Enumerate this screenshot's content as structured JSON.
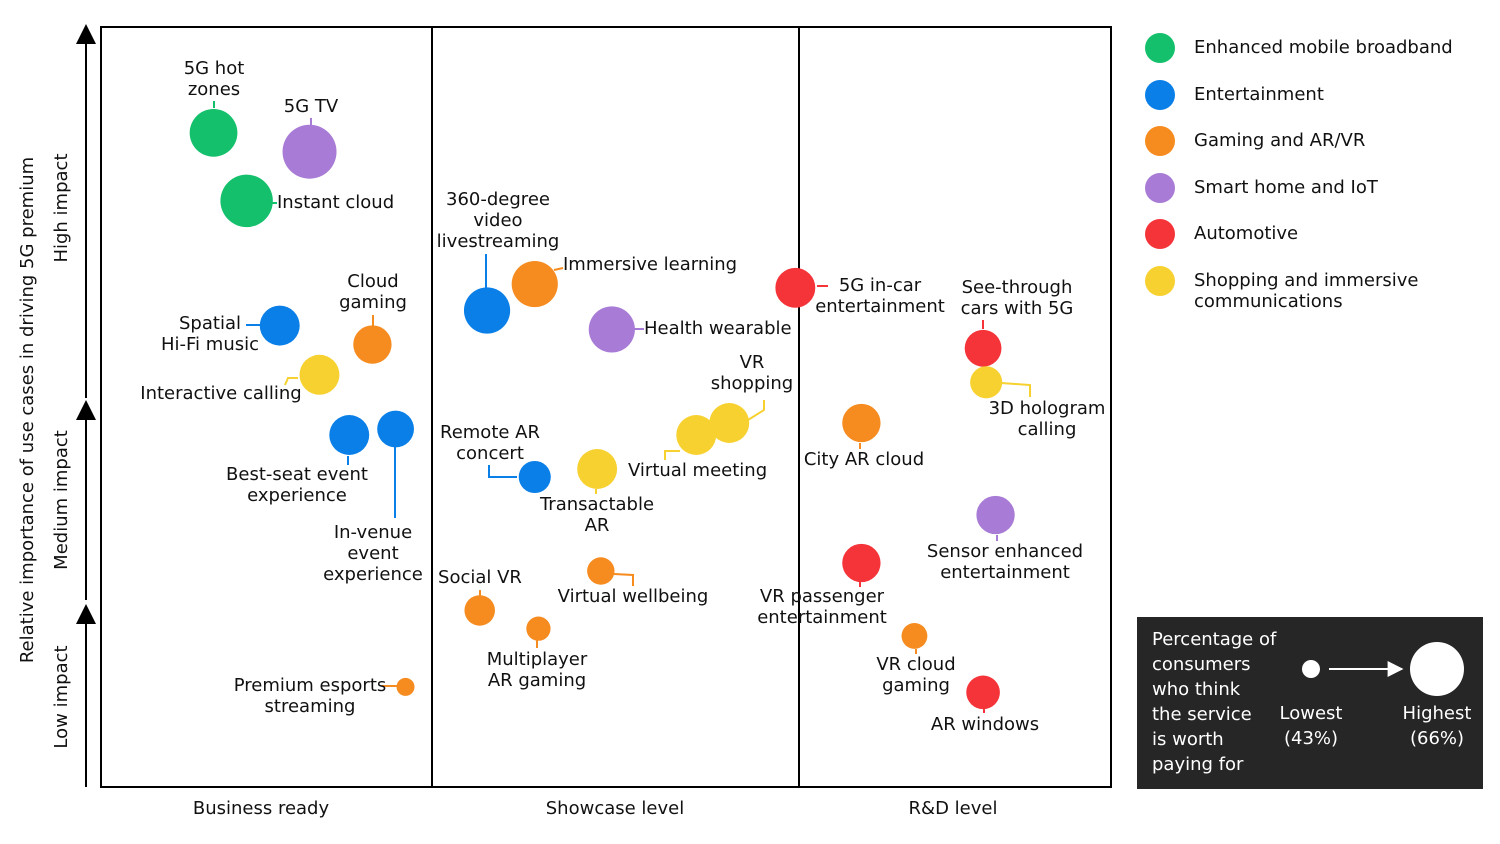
{
  "chart_data": {
    "type": "bubble",
    "ylabel": "Relative importance of use cases in driving 5G premium",
    "x_categories": [
      "Business ready",
      "Showcase level",
      "R&D level"
    ],
    "y_categories": [
      "Low impact",
      "Medium impact",
      "High impact"
    ],
    "xlim": [
      0,
      3
    ],
    "ylim": [
      0,
      3
    ],
    "series": [
      {
        "name": "Enhanced mobile broadband",
        "color": "#14c06b",
        "labels": [
          [
            "5G hot",
            "zones"
          ],
          [
            "Instant cloud"
          ]
        ],
        "x": [
          0.34,
          0.44
        ],
        "values": [
          2.72,
          2.54
        ],
        "sizes": [
          62,
          65
        ]
      },
      {
        "name": "Entertainment",
        "color": "#0a7fe8",
        "labels": [
          [
            "Spatial",
            "Hi-Fi music"
          ],
          [
            "Best-seat event",
            "experience"
          ],
          [
            "In-venue",
            "event",
            "experience"
          ],
          [
            "360-degree",
            "video",
            "livestreaming"
          ],
          [
            "Remote AR",
            "concert"
          ]
        ],
        "x": [
          0.54,
          0.75,
          0.89,
          1.15,
          1.28
        ],
        "values": [
          2.21,
          1.85,
          1.88,
          2.25,
          1.64
        ],
        "sizes": [
          57,
          57,
          55,
          61,
          52
        ]
      },
      {
        "name": "Gaming and AR/VR",
        "color": "#f68b1f",
        "labels": [
          [
            "Cloud",
            "gaming"
          ],
          [
            "Premium esports",
            "streaming"
          ],
          [
            "Immersive learning"
          ],
          [
            "Virtual wellbeing"
          ],
          [
            "Social VR"
          ],
          [
            "Multiplayer",
            "AR gaming"
          ],
          [
            "City AR cloud"
          ],
          [
            "VR cloud",
            "gaming"
          ]
        ],
        "x": [
          0.82,
          0.92,
          1.28,
          1.46,
          1.13,
          1.29,
          2.2,
          2.37
        ],
        "values": [
          2.16,
          0.55,
          2.32,
          1.17,
          0.97,
          0.87,
          1.91,
          0.83
        ],
        "sizes": [
          56,
          43,
          61,
          49,
          51,
          47,
          56,
          48
        ]
      },
      {
        "name": "Smart home and IoT",
        "color": "#a87bd6",
        "labels": [
          [
            "5G TV"
          ],
          [
            "Health wearable"
          ],
          [
            "Sensor enhanced",
            "entertainment"
          ]
        ],
        "x": [
          0.63,
          1.49,
          2.63
        ],
        "values": [
          2.67,
          2.2,
          1.45
        ],
        "sizes": [
          66,
          61,
          56
        ]
      },
      {
        "name": "Automotive",
        "color": "#f5343a",
        "labels": [
          [
            "5G in-car",
            "entertainment"
          ],
          [
            "See-through",
            "cars with 5G"
          ],
          [
            "VR passenger",
            "entertainment"
          ],
          [
            "AR windows"
          ]
        ],
        "x": [
          1.99,
          2.59,
          2.2,
          2.59
        ],
        "values": [
          2.31,
          2.15,
          1.21,
          0.52
        ],
        "sizes": [
          57,
          55,
          56,
          53
        ]
      },
      {
        "name": [
          "Shopping and immersive",
          "communications"
        ],
        "color": "#f7d130",
        "labels": [
          [
            "Interactive calling"
          ],
          [
            "Transactable",
            "AR"
          ],
          [
            "Virtual meeting"
          ],
          [
            "VR",
            "shopping"
          ],
          [
            "3D hologram",
            "calling"
          ]
        ],
        "x": [
          0.66,
          1.45,
          1.72,
          1.81,
          2.6
        ],
        "values": [
          2.08,
          1.68,
          1.85,
          1.91,
          2.06
        ],
        "sizes": [
          57,
          57,
          57,
          57,
          52
        ]
      }
    ],
    "size_legend": {
      "title": [
        "Percentage of",
        "consumers",
        "who think",
        "the service",
        "is worth",
        "paying for"
      ],
      "items": [
        {
          "label": "Lowest",
          "value": 43,
          "value_label": "(43%)"
        },
        {
          "label": "Highest",
          "value": 66,
          "value_label": "(66%)"
        }
      ]
    }
  }
}
